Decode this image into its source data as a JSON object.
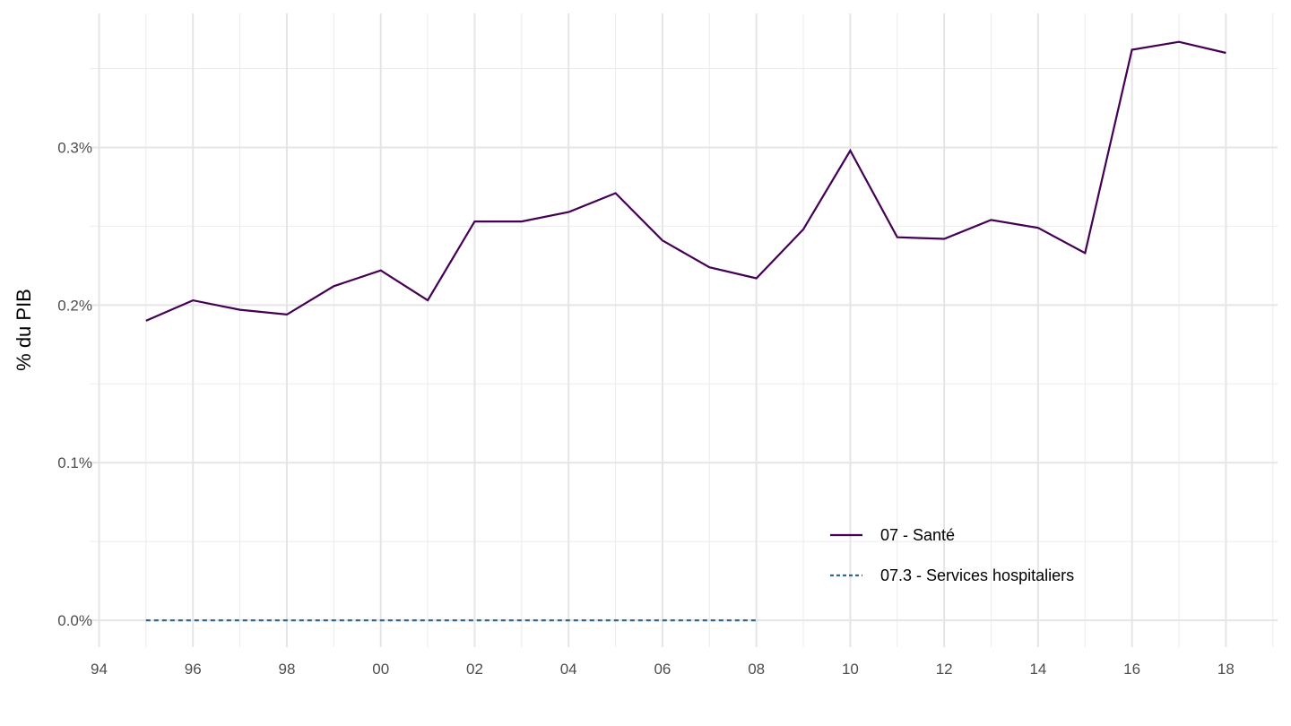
{
  "chart_data": {
    "type": "line",
    "title": "",
    "xlabel": "",
    "ylabel": "% du PIB",
    "x": [
      1995,
      1996,
      1997,
      1998,
      1999,
      2000,
      2001,
      2002,
      2003,
      2004,
      2005,
      2006,
      2007,
      2008,
      2009,
      2010,
      2011,
      2012,
      2013,
      2014,
      2015,
      2016,
      2017,
      2018
    ],
    "xlim": [
      1993.8,
      2019.1
    ],
    "ylim": [
      -0.017,
      0.385
    ],
    "x_ticks": [
      1994,
      1996,
      1998,
      2000,
      2002,
      2004,
      2006,
      2008,
      2010,
      2012,
      2014,
      2016,
      2018
    ],
    "x_tick_labels": [
      "94",
      "96",
      "98",
      "00",
      "02",
      "04",
      "06",
      "08",
      "10",
      "12",
      "14",
      "16",
      "18"
    ],
    "y_ticks": [
      0,
      0.1,
      0.2,
      0.3
    ],
    "y_tick_labels": [
      "0.0%",
      "0.1%",
      "0.2%",
      "0.3%"
    ],
    "grid": true,
    "legend_position": "bottom-right inside",
    "series": [
      {
        "name": "07 - Santé",
        "color": "#440154",
        "dash": "solid",
        "values": [
          0.19,
          0.203,
          0.197,
          0.194,
          0.212,
          0.222,
          0.203,
          0.253,
          0.253,
          0.259,
          0.271,
          0.241,
          0.224,
          0.217,
          0.248,
          0.298,
          0.243,
          0.242,
          0.254,
          0.249,
          0.233,
          0.362,
          0.367,
          0.36
        ]
      },
      {
        "name": "07.3 - Services hospitaliers",
        "color": "#31688e",
        "dash": "dashed",
        "values": [
          0,
          0,
          0,
          0,
          0,
          0,
          0,
          0,
          0,
          0,
          0,
          0,
          0,
          0,
          null,
          null,
          null,
          null,
          null,
          null,
          null,
          null,
          null,
          null
        ]
      }
    ]
  }
}
